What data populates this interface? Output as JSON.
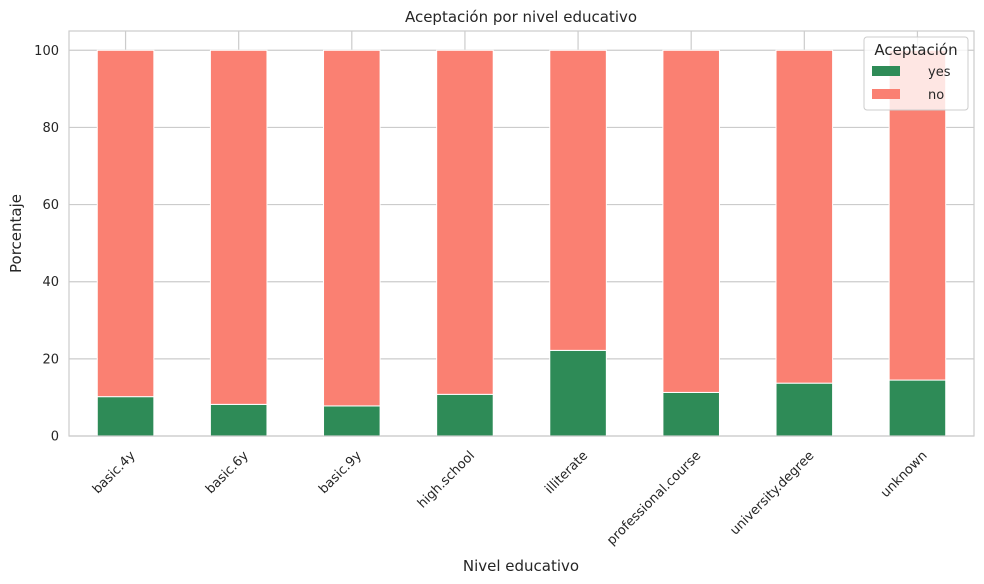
{
  "chart_data": {
    "type": "bar",
    "stacked": true,
    "title": "Aceptación por nivel educativo",
    "xlabel": "Nivel educativo",
    "ylabel": "Porcentaje",
    "categories": [
      "basic.4y",
      "basic.6y",
      "basic.9y",
      "high.school",
      "illiterate",
      "professional.course",
      "university.degree",
      "unknown"
    ],
    "series": [
      {
        "name": "yes",
        "color": "#2e8b57",
        "values": [
          10.2,
          8.2,
          7.8,
          10.8,
          22.2,
          11.3,
          13.7,
          14.5
        ]
      },
      {
        "name": "no",
        "color": "#fa8072",
        "values": [
          89.8,
          91.8,
          92.2,
          89.2,
          77.8,
          88.7,
          86.3,
          85.5
        ]
      }
    ],
    "ylim": [
      0,
      105
    ],
    "yticks": [
      0,
      20,
      40,
      60,
      80,
      100
    ],
    "grid": true,
    "legend": {
      "title": "Aceptación",
      "placement": "top-right"
    }
  }
}
